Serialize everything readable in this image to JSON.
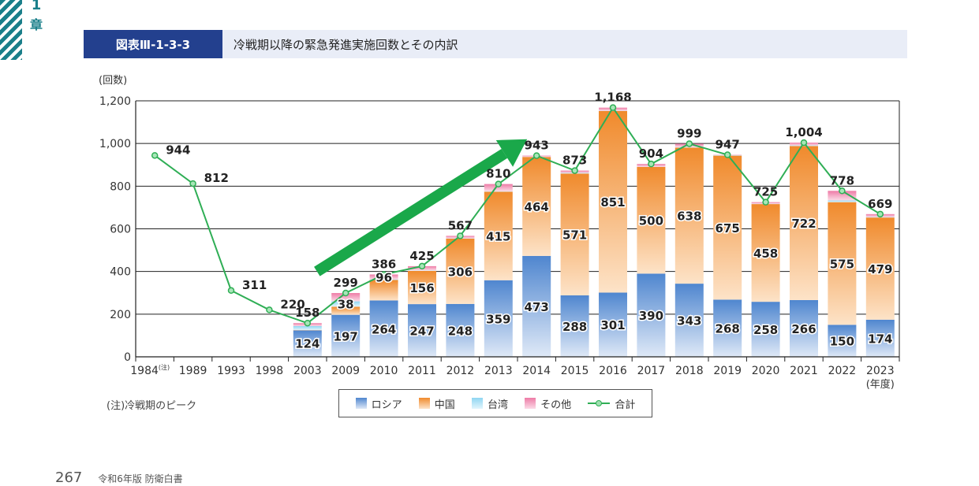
{
  "page": {
    "chapter_number": "1",
    "chapter_label": "章",
    "figure_tag": "図表Ⅲ-1-3-3",
    "figure_title": "冷戦期以降の緊急発進実施回数とその内訳",
    "note": "(注)冷戦期のピーク",
    "footer_page": "267",
    "footer_text": "令和6年版 防衛白書"
  },
  "chart_data": {
    "type": "bar",
    "stacked": true,
    "ylabel": "(回数)",
    "xlabel_unit": "(年度)",
    "ylim": [
      0,
      1200
    ],
    "yticks": [
      0,
      200,
      400,
      600,
      800,
      1000,
      1200
    ],
    "ytick_labels": [
      "0",
      "200",
      "400",
      "600",
      "800",
      "1,000",
      "1,200"
    ],
    "grid": true,
    "categories": [
      "1984",
      "1989",
      "1993",
      "1998",
      "2003",
      "2009",
      "2010",
      "2011",
      "2012",
      "2013",
      "2014",
      "2015",
      "2016",
      "2017",
      "2018",
      "2019",
      "2020",
      "2021",
      "2022",
      "2023"
    ],
    "category_note": "(注)",
    "series": [
      {
        "name": "ロシア",
        "color": "#4f86cf",
        "values": [
          null,
          null,
          null,
          null,
          124,
          197,
          264,
          247,
          248,
          359,
          473,
          288,
          301,
          390,
          343,
          268,
          258,
          266,
          150,
          174
        ],
        "labels_shown": [
          false,
          false,
          false,
          false,
          true,
          true,
          true,
          true,
          true,
          true,
          true,
          true,
          true,
          true,
          true,
          true,
          true,
          true,
          true,
          true
        ]
      },
      {
        "name": "中国",
        "color": "#f08a2c",
        "values": [
          null,
          null,
          null,
          null,
          2,
          38,
          96,
          156,
          306,
          415,
          464,
          571,
          851,
          500,
          638,
          675,
          458,
          722,
          575,
          479
        ],
        "labels_shown": [
          false,
          false,
          false,
          false,
          false,
          true,
          true,
          true,
          true,
          true,
          true,
          true,
          true,
          true,
          true,
          true,
          true,
          true,
          true,
          true
        ]
      },
      {
        "name": "台湾",
        "color": "#8fd6f2",
        "values": [
          null,
          null,
          null,
          null,
          18,
          25,
          3,
          2,
          1,
          2,
          1,
          3,
          1,
          0,
          2,
          2,
          1,
          3,
          8,
          2
        ],
        "labels_shown": []
      },
      {
        "name": "その他",
        "color": "#ee7ba6",
        "values": [
          null,
          null,
          null,
          null,
          14,
          39,
          23,
          20,
          12,
          34,
          5,
          11,
          15,
          14,
          16,
          2,
          8,
          13,
          45,
          14
        ],
        "labels_shown": []
      }
    ],
    "total": {
      "name": "合計",
      "color": "#2fae55",
      "values": [
        944,
        812,
        311,
        220,
        158,
        299,
        386,
        425,
        567,
        810,
        943,
        873,
        1168,
        904,
        999,
        947,
        725,
        1004,
        778,
        669
      ],
      "labels": [
        "944",
        "812",
        "311",
        "220",
        "158",
        "299",
        "386",
        "425",
        "567",
        "810",
        "943",
        "873",
        "1,168",
        "904",
        "999",
        "947",
        "725",
        "1,004",
        "778",
        "669"
      ]
    },
    "trend_arrow": {
      "from_category": "2003",
      "to_category": "2014",
      "color": "#1aa84a"
    },
    "legend": {
      "position": "bottom-center",
      "items": [
        "ロシア",
        "中国",
        "台湾",
        "その他",
        "合計"
      ]
    }
  }
}
